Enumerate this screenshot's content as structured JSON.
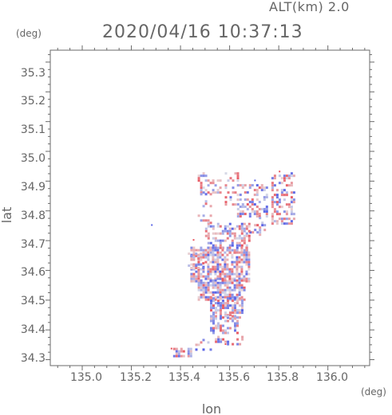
{
  "header": {
    "altitude_text": "ALT(km) 2.0",
    "datetime": "2020/04/16 10:37:13"
  },
  "colors": {
    "axis": "#6a6a6a",
    "text": "#666666",
    "positive": "#e8505a",
    "negative": "#5a64e6",
    "background": "#ffffff"
  },
  "chart_data": {
    "type": "heatmap",
    "xlabel": "lon",
    "ylabel": "lat",
    "x_unit": "(deg)",
    "y_unit": "(deg)",
    "xlim": [
      134.87,
      136.17
    ],
    "ylim": [
      34.28,
      35.34
    ],
    "x_ticks": [
      "135.0",
      "135.2",
      "135.4",
      "135.6",
      "135.8",
      "136.0"
    ],
    "y_ticks": [
      "34.3",
      "34.4",
      "34.5",
      "34.6",
      "34.7",
      "34.8",
      "34.9",
      "35.0",
      "35.1",
      "35.2",
      "35.3"
    ],
    "x_minor_step": 0.05,
    "y_minor_step": 0.025,
    "grid": false,
    "clusters": [
      {
        "lon": [
          135.47,
          135.56
        ],
        "lat": [
          34.86,
          34.93
        ],
        "density": 0.35
      },
      {
        "lon": [
          135.47,
          135.52
        ],
        "lat": [
          34.76,
          34.86
        ],
        "density": 0.2
      },
      {
        "lon": [
          135.58,
          135.63
        ],
        "lat": [
          34.82,
          34.93
        ],
        "density": 0.35
      },
      {
        "lon": [
          135.63,
          135.75
        ],
        "lat": [
          34.78,
          34.89
        ],
        "density": 0.45
      },
      {
        "lon": [
          135.77,
          135.86
        ],
        "lat": [
          34.76,
          34.93
        ],
        "density": 0.55
      },
      {
        "lon": [
          135.68,
          135.74
        ],
        "lat": [
          34.72,
          34.78
        ],
        "density": 0.3
      },
      {
        "lon": [
          135.5,
          135.68
        ],
        "lat": [
          34.66,
          34.76
        ],
        "density": 0.55
      },
      {
        "lon": [
          135.44,
          135.68
        ],
        "lat": [
          34.56,
          34.68
        ],
        "density": 0.8
      },
      {
        "lon": [
          135.47,
          135.66
        ],
        "lat": [
          34.5,
          34.57
        ],
        "density": 0.8
      },
      {
        "lon": [
          135.52,
          135.65
        ],
        "lat": [
          34.44,
          34.51
        ],
        "density": 0.7
      },
      {
        "lon": [
          135.52,
          135.63
        ],
        "lat": [
          34.39,
          34.45
        ],
        "density": 0.55
      },
      {
        "lon": [
          135.53,
          135.65
        ],
        "lat": [
          34.35,
          34.38
        ],
        "density": 0.3
      },
      {
        "lon": [
          135.46,
          135.52
        ],
        "lat": [
          34.33,
          34.37
        ],
        "density": 0.35
      },
      {
        "lon": [
          135.37,
          135.44
        ],
        "lat": [
          34.31,
          34.34
        ],
        "density": 0.75
      },
      {
        "lon": [
          135.42,
          135.49
        ],
        "lat": [
          34.61,
          34.66
        ],
        "density": 0.4
      }
    ]
  }
}
